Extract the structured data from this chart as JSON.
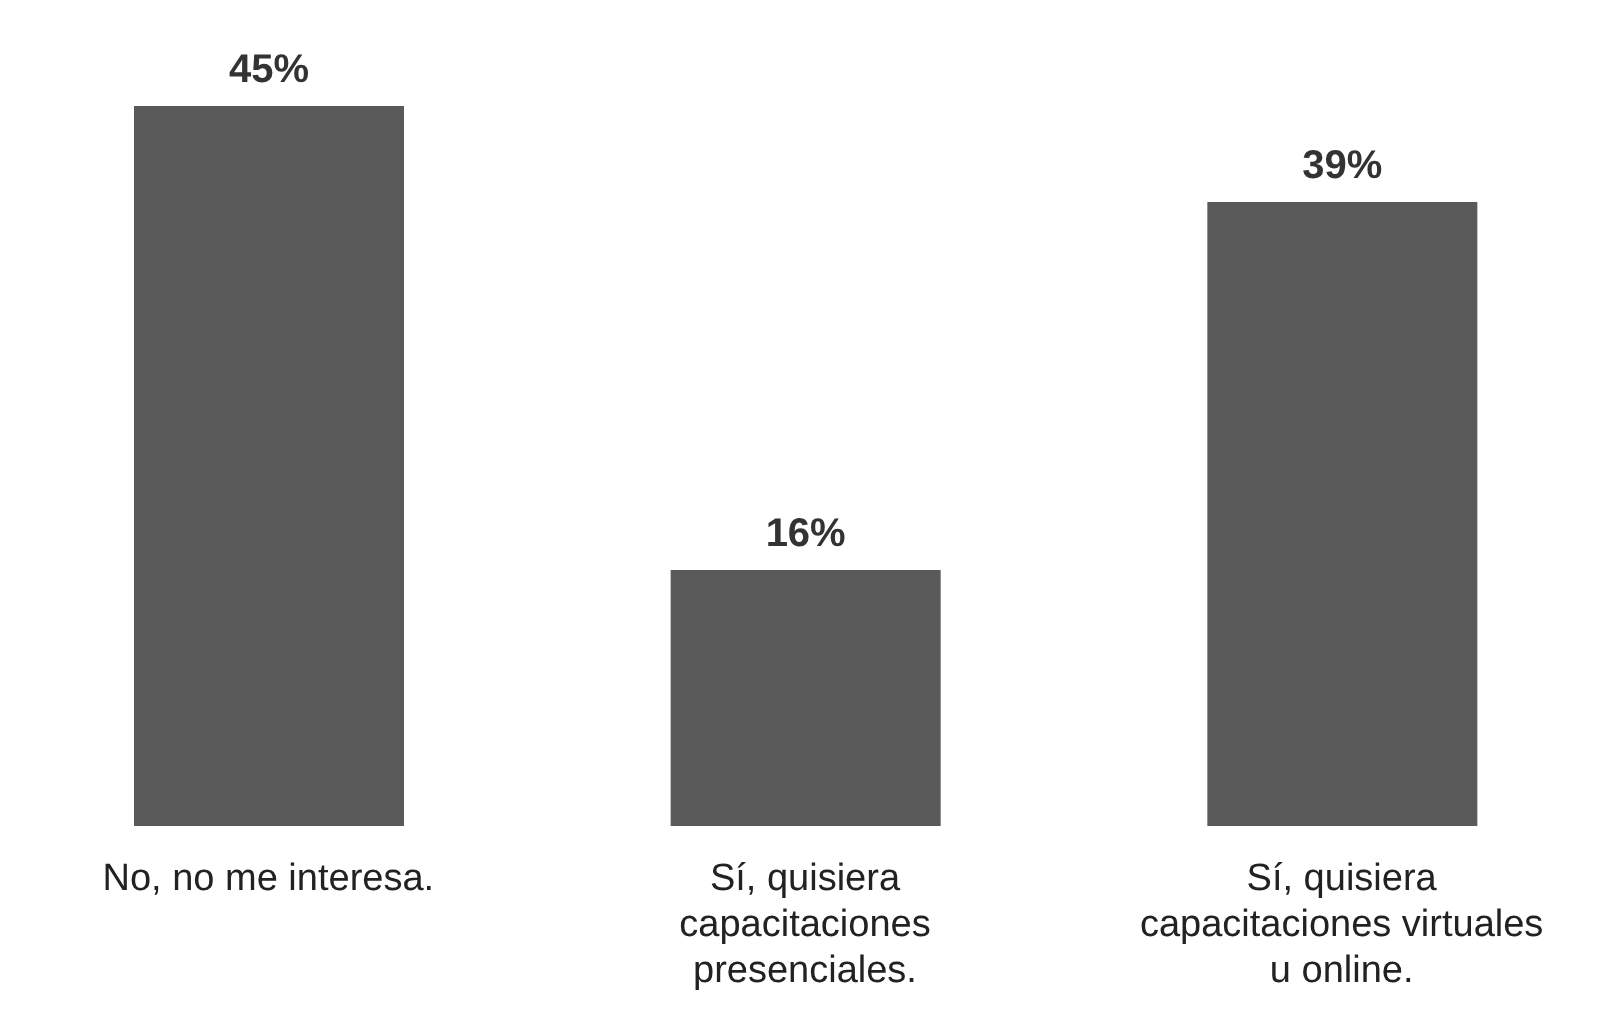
{
  "chart_data": {
    "type": "bar",
    "categories": [
      "No, no me interesa.",
      "Sí, quisiera capacitaciones presenciales.",
      "Sí, quisiera capacitaciones virtuales u online."
    ],
    "values": [
      45,
      16,
      39
    ],
    "color": "#5a5a5a",
    "value_labels": [
      "45%",
      "16%",
      "39%"
    ],
    "grid": false,
    "legend": false
  }
}
